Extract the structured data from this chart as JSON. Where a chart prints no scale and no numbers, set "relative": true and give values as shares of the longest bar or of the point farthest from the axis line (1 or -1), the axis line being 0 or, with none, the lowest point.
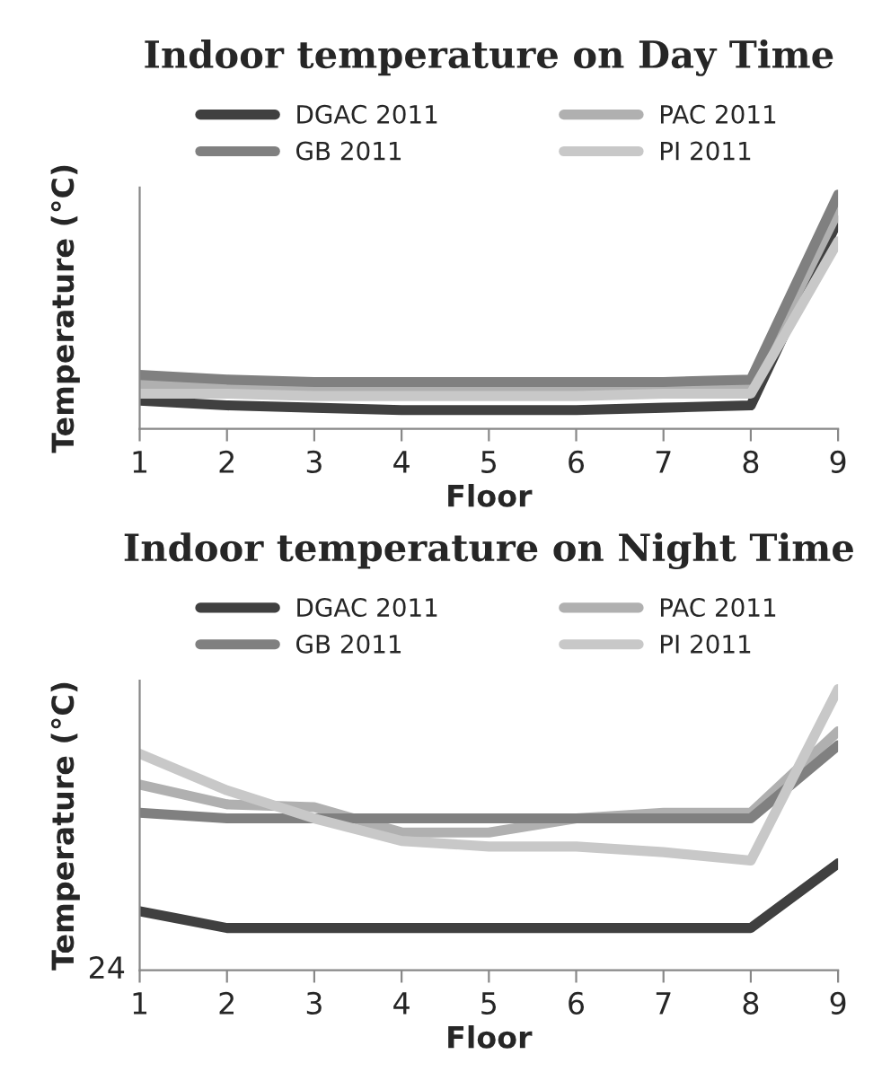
{
  "chart_data": [
    {
      "type": "line",
      "title": "Indoor temperature on Day Time",
      "xlabel": "Floor",
      "ylabel": "Temperature (°C)",
      "relative": true,
      "legend": "top",
      "grid": false,
      "line_style": "solid",
      "categories": [
        "1",
        "2",
        "3",
        "4",
        "5",
        "6",
        "7",
        "8",
        "9"
      ],
      "series": [
        {
          "name": "DGAC 2011",
          "color": "#404040",
          "values": [
            0.12,
            0.1,
            0.09,
            0.08,
            0.08,
            0.08,
            0.09,
            0.1,
            0.89
          ]
        },
        {
          "name": "PAC 2011",
          "color": "#b0b0b0",
          "values": [
            0.19,
            0.18,
            0.18,
            0.18,
            0.18,
            0.18,
            0.18,
            0.18,
            0.93
          ]
        },
        {
          "name": "GB 2011",
          "color": "#808080",
          "values": [
            0.23,
            0.21,
            0.2,
            0.2,
            0.2,
            0.2,
            0.2,
            0.21,
            1.0
          ]
        },
        {
          "name": "PI 2011",
          "color": "#c8c8c8",
          "values": [
            0.15,
            0.15,
            0.14,
            0.14,
            0.14,
            0.14,
            0.15,
            0.15,
            0.8
          ]
        }
      ]
    },
    {
      "type": "line",
      "title": "Indoor temperature on Night Time",
      "xlabel": "Floor",
      "ylabel": "Temperature (°C)",
      "relative": true,
      "legend": "top",
      "grid": false,
      "line_style": "solid",
      "annotations": [
        "24"
      ],
      "categories": [
        "1",
        "2",
        "3",
        "4",
        "5",
        "6",
        "7",
        "8",
        "9"
      ],
      "series": [
        {
          "name": "DGAC 2011",
          "color": "#404040",
          "values": [
            0.21,
            0.15,
            0.15,
            0.15,
            0.15,
            0.15,
            0.15,
            0.15,
            0.38
          ]
        },
        {
          "name": "PAC 2011",
          "color": "#b0b0b0",
          "values": [
            0.66,
            0.59,
            0.58,
            0.49,
            0.49,
            0.54,
            0.56,
            0.56,
            0.85
          ]
        },
        {
          "name": "GB 2011",
          "color": "#808080",
          "values": [
            0.56,
            0.54,
            0.54,
            0.54,
            0.54,
            0.54,
            0.54,
            0.54,
            0.8
          ]
        },
        {
          "name": "PI 2011",
          "color": "#c8c8c8",
          "values": [
            0.77,
            0.64,
            0.54,
            0.46,
            0.44,
            0.44,
            0.42,
            0.39,
            1.0
          ]
        }
      ]
    }
  ]
}
